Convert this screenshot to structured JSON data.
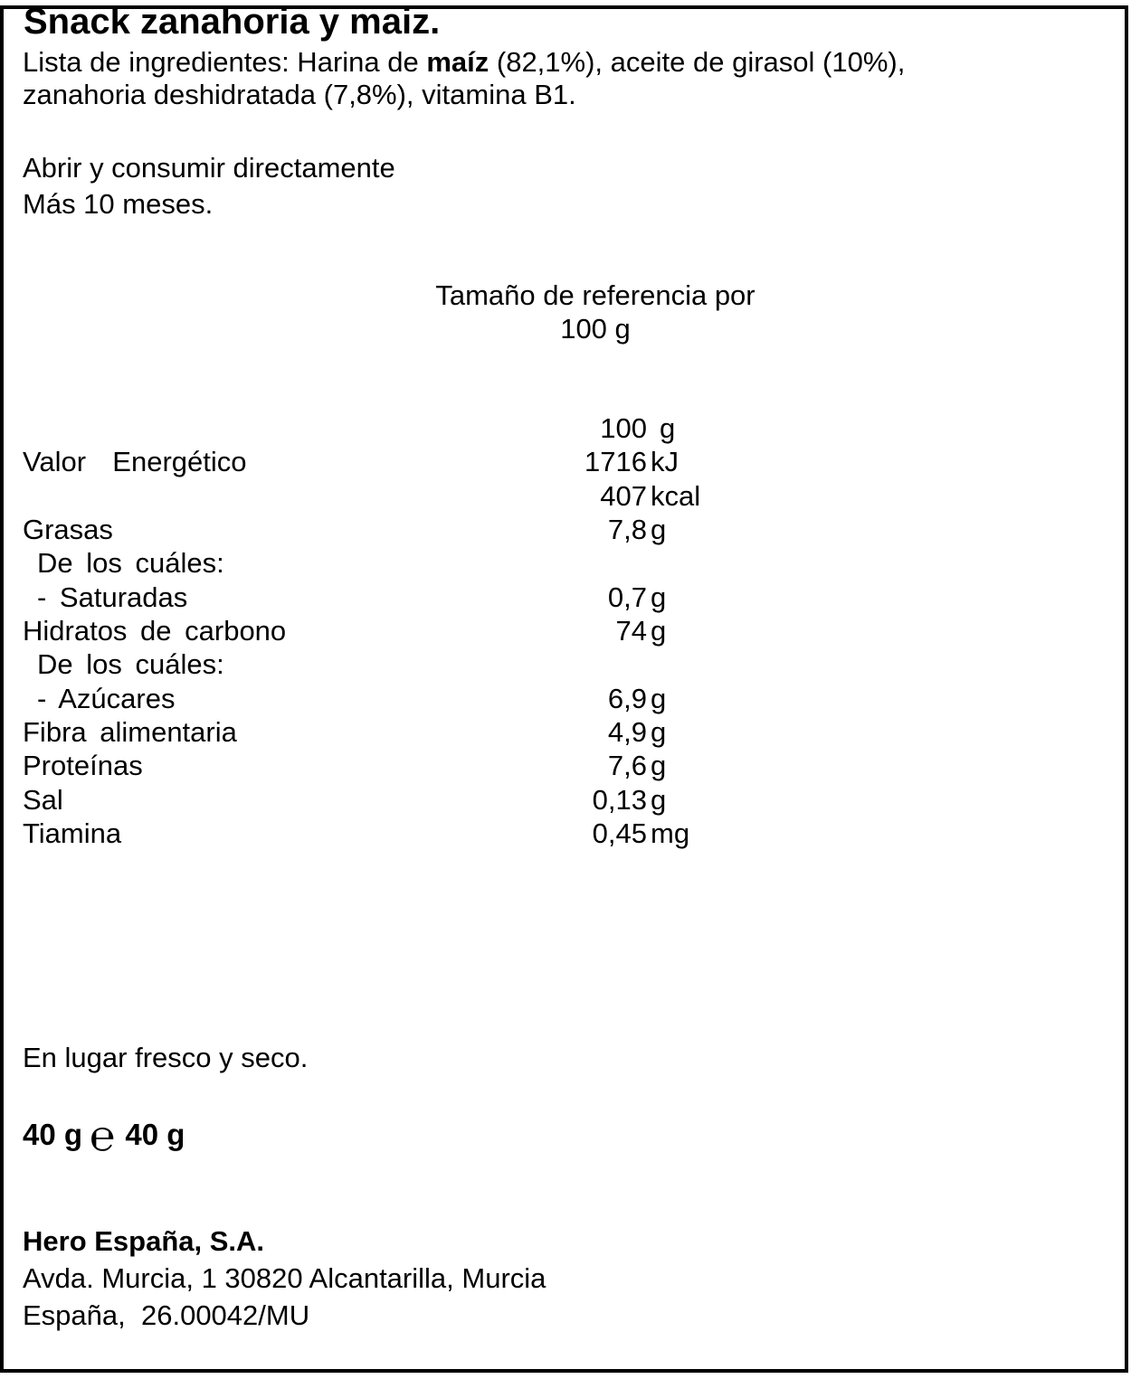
{
  "product": {
    "title": "Snack zanahoria y maiz.",
    "ingredients": {
      "prefix": "Lista de ingredientes: Harina de ",
      "highlight": "maíz",
      "line1_rest": " (82,1%), aceite de girasol (10%),",
      "line2": "zanahoria deshidratada (7,8%), vitamina B1."
    },
    "usage": "Abrir y consumir directamente",
    "shelf_life": "Más 10 meses.",
    "storage": "En lugar fresco y seco.",
    "net_weight": {
      "left": "40 g",
      "estimated_symbol": "℮",
      "right": " 40 g"
    }
  },
  "nutrition": {
    "header_line1": "Tamaño de referencia por",
    "header_line2": "100 g",
    "rows": [
      {
        "label": "",
        "value": "100",
        "unit": "g"
      },
      {
        "label": "Valor  Energético",
        "value": "1716",
        "unit": "kJ"
      },
      {
        "label": "",
        "value": "407",
        "unit": "kcal"
      },
      {
        "label": "Grasas",
        "value": "7,8",
        "unit": "g"
      },
      {
        "label": "De los cuáles:",
        "value": "",
        "unit": ""
      },
      {
        "label": "- Saturadas",
        "value": "0,7",
        "unit": "g"
      },
      {
        "label": "Hidratos de carbono",
        "value": "74",
        "unit": "g"
      },
      {
        "label": "De los cuáles:",
        "value": "",
        "unit": ""
      },
      {
        "label": "- Azúcares",
        "value": "6,9",
        "unit": "g"
      },
      {
        "label": "Fibra alimentaria",
        "value": "4,9",
        "unit": "g"
      },
      {
        "label": "Proteínas",
        "value": "7,6",
        "unit": "g"
      },
      {
        "label": "Sal",
        "value": "0,13",
        "unit": "g"
      },
      {
        "label": "Tiamina",
        "value": "0,45",
        "unit": "mg"
      }
    ]
  },
  "manufacturer": {
    "name": "Hero España, S.A.",
    "address": "Avda. Murcia, 1 30820 Alcantarilla, Murcia",
    "registration": "España,  26.00042/MU"
  },
  "colors": {
    "ink": "#000000",
    "background": "#ffffff"
  }
}
